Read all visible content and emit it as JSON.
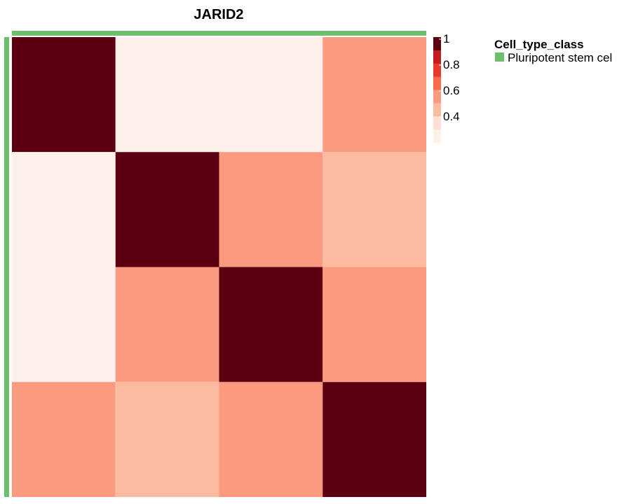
{
  "chart_data": {
    "type": "heatmap",
    "title": "JARID2",
    "rows": 4,
    "cols": 4,
    "values": [
      [
        1.0,
        0.2,
        0.2,
        0.5
      ],
      [
        0.2,
        1.0,
        0.6,
        0.4
      ],
      [
        0.2,
        0.6,
        1.0,
        0.5
      ],
      [
        0.5,
        0.4,
        0.5,
        1.0
      ]
    ],
    "colorbar": {
      "ticks": [
        "1",
        "0.8",
        "0.6",
        "0.4"
      ],
      "colors": [
        "#fef0ea",
        "#fde0d2",
        "#fcbba1",
        "#fb9a7f",
        "#f86a4c",
        "#e83a2c",
        "#c21c1f",
        "#5c0011"
      ]
    },
    "annotation": {
      "legend_title": "Cell_type_class",
      "categories": [
        {
          "label": "Pluripotent stem cel",
          "color": "#6dbf6c"
        }
      ]
    }
  }
}
